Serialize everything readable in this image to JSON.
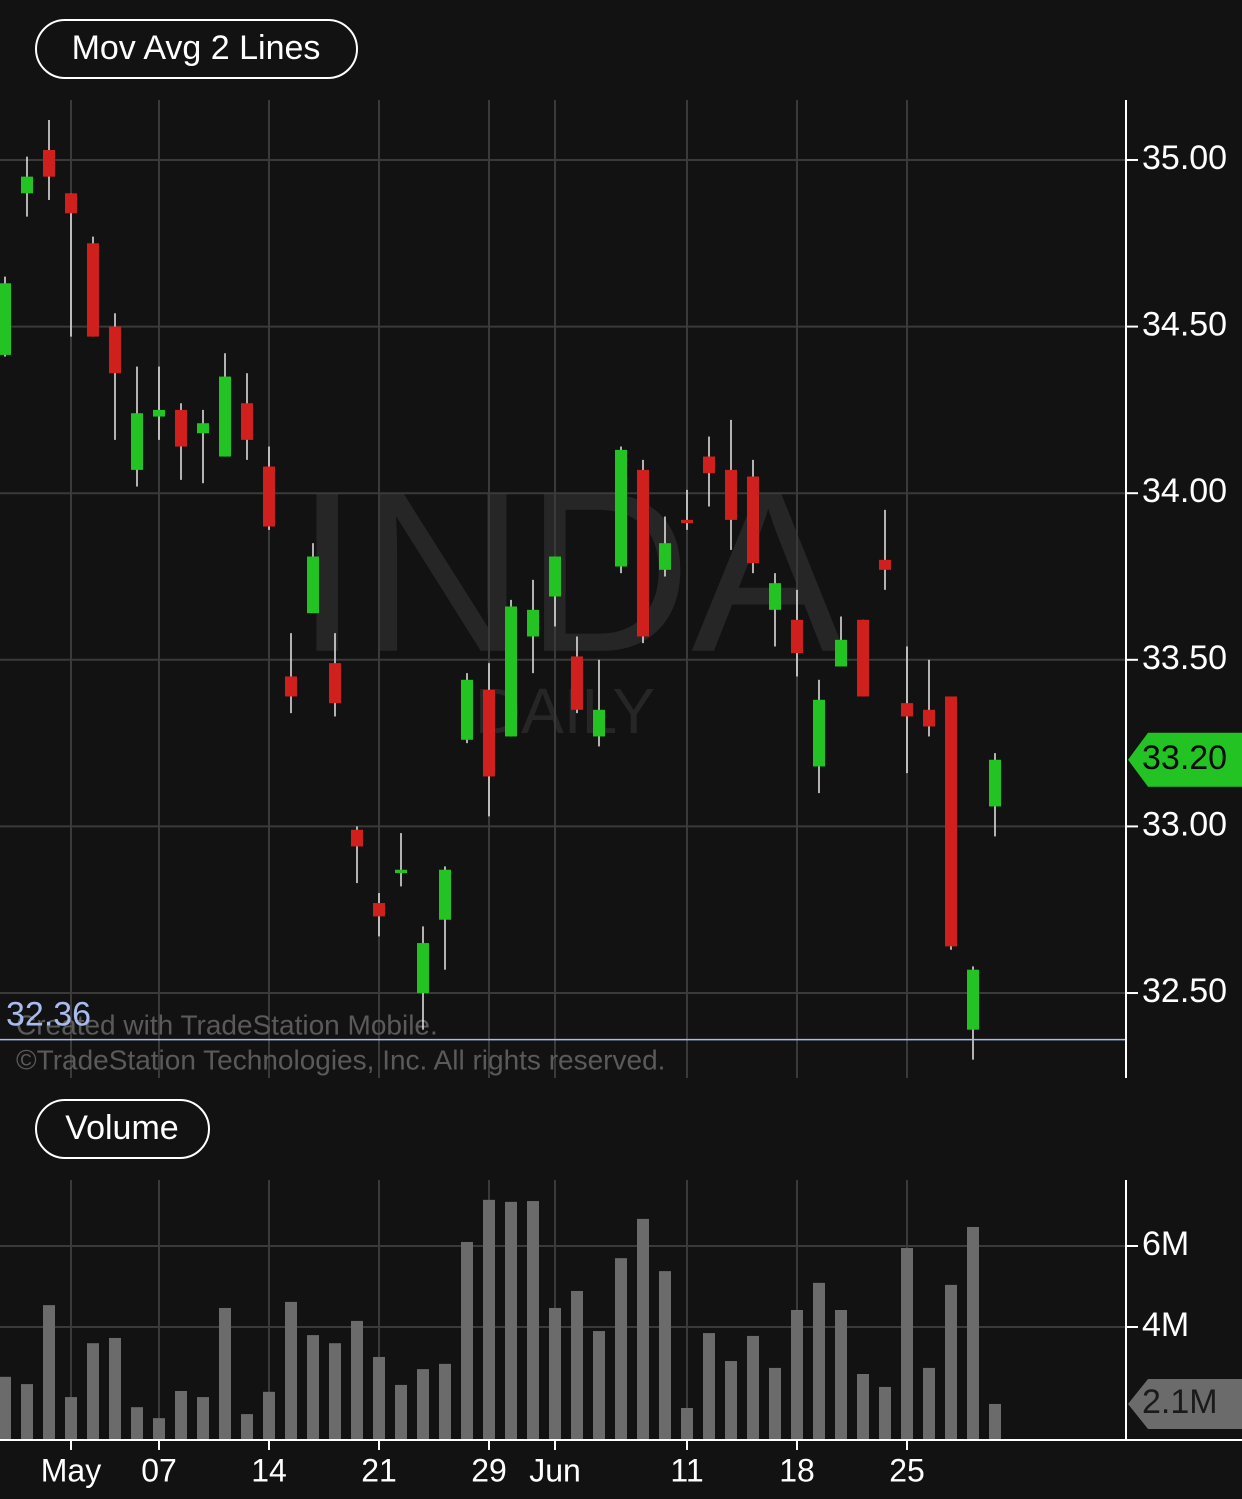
{
  "chart_data": [
    {
      "type": "candlestick",
      "indicator_label": "Mov Avg 2 Lines",
      "watermark_symbol": "INDA",
      "watermark_interval": "DAILY",
      "footnotes": [
        "Created with TradeStation Mobile.",
        "©TradeStation Technologies, Inc. All rights reserved."
      ],
      "up_color": "#22c322",
      "down_color": "#d0201e",
      "open": [
        34.415,
        34.9,
        35.03,
        34.9,
        34.75,
        34.5,
        34.07,
        34.23,
        34.25,
        34.18,
        34.11,
        34.27,
        34.08,
        33.45,
        33.64,
        33.49,
        32.99,
        32.77,
        32.86,
        32.5,
        32.72,
        33.26,
        33.41,
        33.27,
        33.57,
        33.69,
        33.51,
        33.27,
        33.78,
        34.07,
        33.77,
        33.92,
        34.11,
        34.07,
        34.05,
        33.65,
        33.62,
        33.18,
        33.48,
        33.62,
        33.8,
        33.37,
        33.35,
        33.39,
        32.39,
        33.06
      ],
      "high": [
        34.65,
        35.01,
        35.12,
        34.9,
        34.77,
        34.54,
        34.38,
        34.38,
        34.27,
        34.25,
        34.42,
        34.36,
        34.14,
        33.58,
        33.85,
        33.58,
        33.0,
        32.8,
        32.98,
        32.7,
        32.88,
        33.46,
        33.49,
        33.68,
        33.74,
        33.81,
        33.57,
        33.5,
        34.14,
        34.1,
        33.93,
        34.01,
        34.17,
        34.22,
        34.1,
        33.76,
        33.71,
        33.44,
        33.63,
        33.62,
        33.95,
        33.54,
        33.5,
        33.39,
        32.58,
        33.22
      ],
      "low": [
        34.41,
        34.83,
        34.88,
        34.47,
        34.47,
        34.16,
        34.02,
        34.16,
        34.04,
        34.03,
        34.11,
        34.1,
        33.89,
        33.34,
        33.64,
        33.33,
        32.83,
        32.67,
        32.82,
        32.39,
        32.57,
        33.25,
        33.03,
        33.27,
        33.46,
        33.6,
        33.34,
        33.24,
        33.76,
        33.55,
        33.75,
        33.89,
        33.96,
        33.83,
        33.76,
        33.54,
        33.45,
        33.1,
        33.48,
        33.39,
        33.71,
        33.16,
        33.27,
        32.63,
        32.3,
        32.97
      ],
      "close": [
        34.63,
        34.95,
        34.95,
        34.84,
        34.47,
        34.36,
        34.24,
        34.25,
        34.14,
        34.21,
        34.35,
        34.16,
        33.9,
        33.39,
        33.81,
        33.37,
        32.94,
        32.73,
        32.87,
        32.65,
        32.87,
        33.44,
        33.15,
        33.66,
        33.65,
        33.81,
        33.35,
        33.35,
        34.13,
        33.57,
        33.85,
        33.91,
        34.06,
        33.92,
        33.79,
        33.73,
        33.52,
        33.38,
        33.56,
        33.39,
        33.77,
        33.33,
        33.3,
        32.64,
        32.57,
        33.2
      ],
      "ylim": [
        32.245,
        35.18
      ],
      "yticks": [
        {
          "value": 32.5,
          "label": "32.50"
        },
        {
          "value": 33,
          "label": "33.00"
        },
        {
          "value": 33.5,
          "label": "33.50"
        },
        {
          "value": 34,
          "label": "34.00"
        },
        {
          "value": 34.5,
          "label": "34.50"
        },
        {
          "value": 35,
          "label": "35.00"
        }
      ],
      "last_price": {
        "value": 33.2,
        "label": "33.20"
      },
      "low_line": {
        "value": 32.36,
        "label": "32.36"
      },
      "grid": true
    },
    {
      "type": "bar",
      "indicator_label": "Volume",
      "color": "#6b6b6b",
      "categories": [
        null,
        null,
        null,
        "May",
        null,
        null,
        null,
        "07",
        null,
        null,
        null,
        null,
        "14",
        null,
        null,
        null,
        null,
        "21",
        null,
        null,
        null,
        null,
        "29",
        null,
        null,
        "Jun",
        null,
        null,
        null,
        null,
        null,
        "11",
        null,
        null,
        null,
        null,
        "18",
        null,
        null,
        null,
        null,
        "25",
        null,
        null,
        null,
        null
      ],
      "values": [
        2770000,
        2590000,
        4540000,
        2270000,
        3600000,
        3730000,
        2020000,
        1750000,
        2420000,
        2270000,
        4470000,
        1850000,
        2400000,
        4620000,
        3800000,
        3600000,
        4150000,
        3260000,
        2570000,
        2960000,
        3090000,
        6100000,
        7140000,
        7090000,
        7110000,
        4470000,
        4890000,
        3900000,
        5700000,
        6670000,
        5380000,
        2000000,
        3850000,
        3160000,
        3780000,
        2990000,
        4420000,
        5090000,
        4420000,
        2840000,
        2520000,
        5950000,
        2990000,
        5040000,
        6470000,
        2100000
      ],
      "ylim": [
        1210000,
        7630000
      ],
      "yticks": [
        {
          "value": 4000000,
          "label": "4M"
        },
        {
          "value": 6000000,
          "label": "6M"
        }
      ],
      "last_volume": {
        "value": 2100000,
        "label": "2.1M"
      },
      "grid": true
    }
  ]
}
